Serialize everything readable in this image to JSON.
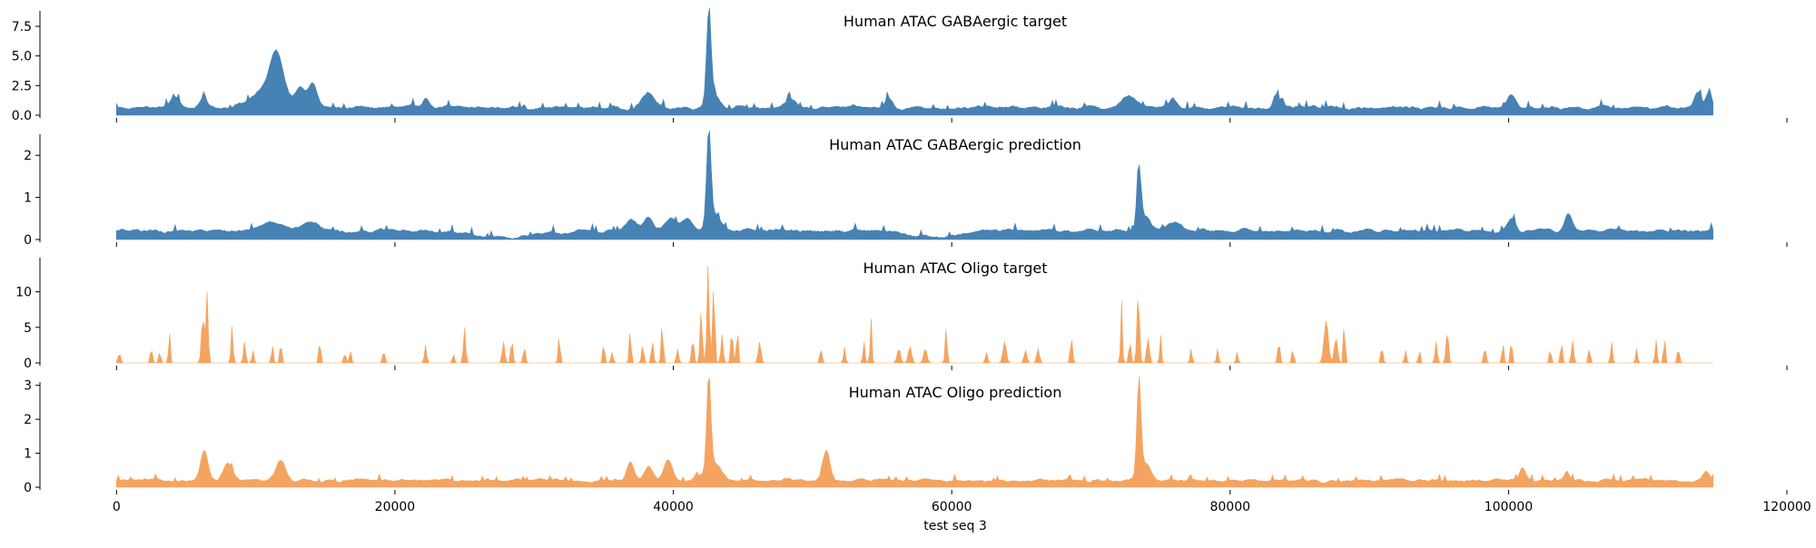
{
  "chart_data": [
    {
      "type": "area",
      "title": "Human ATAC GABAergic target",
      "color": "#4682B4",
      "yticks": [
        0.0,
        2.5,
        5.0,
        7.5
      ],
      "ytick_labels": [
        "0.0",
        "2.5",
        "5.0",
        "7.5"
      ],
      "ylim": [
        0,
        8.8
      ],
      "xlim": [
        -5500,
        120000
      ],
      "xticks": [
        0,
        20000,
        40000,
        60000,
        80000,
        100000,
        120000
      ],
      "x_extent": [
        0,
        114688
      ],
      "baseline": 0.55,
      "noise": 0.32,
      "peaks": [
        [
          11500,
          3.4,
          450
        ],
        [
          11000,
          1.6,
          1200
        ],
        [
          13200,
          1.4,
          350
        ],
        [
          14100,
          2.0,
          300
        ],
        [
          4200,
          1.0,
          300
        ],
        [
          6300,
          0.8,
          250
        ],
        [
          38200,
          1.3,
          400
        ],
        [
          42550,
          7.7,
          160
        ],
        [
          42900,
          1.2,
          400
        ],
        [
          72800,
          1.0,
          500
        ],
        [
          75900,
          0.9,
          250
        ],
        [
          83300,
          1.1,
          200
        ],
        [
          100200,
          1.0,
          300
        ],
        [
          113600,
          1.4,
          250
        ],
        [
          114400,
          1.4,
          200
        ],
        [
          22200,
          0.9,
          250
        ],
        [
          48500,
          0.7,
          300
        ],
        [
          55500,
          0.8,
          250
        ]
      ]
    },
    {
      "type": "area",
      "title": "Human ATAC GABAergic prediction",
      "color": "#4682B4",
      "yticks": [
        0,
        1,
        2
      ],
      "ytick_labels": [
        "0",
        "1",
        "2"
      ],
      "ylim": [
        0,
        2.5
      ],
      "xlim": [
        -5500,
        120000
      ],
      "xticks": [
        0,
        20000,
        40000,
        60000,
        80000,
        100000,
        120000
      ],
      "x_extent": [
        0,
        114688
      ],
      "baseline": 0.18,
      "noise": 0.09,
      "peaks": [
        [
          11300,
          0.22,
          900
        ],
        [
          14000,
          0.2,
          600
        ],
        [
          37000,
          0.25,
          400
        ],
        [
          38200,
          0.3,
          300
        ],
        [
          39800,
          0.3,
          400
        ],
        [
          41000,
          0.3,
          400
        ],
        [
          42550,
          2.2,
          150
        ],
        [
          42900,
          0.4,
          500
        ],
        [
          73450,
          1.45,
          150
        ],
        [
          73900,
          0.35,
          400
        ],
        [
          76000,
          0.2,
          500
        ],
        [
          100200,
          0.3,
          300
        ],
        [
          104300,
          0.45,
          250
        ],
        [
          28000,
          -0.15,
          2500
        ],
        [
          58500,
          -0.15,
          1500
        ]
      ]
    },
    {
      "type": "area",
      "title": "Human ATAC Oligo target",
      "color": "#F4A460",
      "yticks": [
        0,
        5,
        10
      ],
      "ytick_labels": [
        "0",
        "5",
        "10"
      ],
      "ylim": [
        0,
        14.8
      ],
      "xlim": [
        -5500,
        120000
      ],
      "xticks": [
        0,
        20000,
        40000,
        60000,
        80000,
        100000,
        120000
      ],
      "x_extent": [
        0,
        114688
      ],
      "baseline": 0,
      "noise": 0,
      "peaks": [
        [
          200,
          1.3,
          100
        ],
        [
          2500,
          2.0,
          80
        ],
        [
          3100,
          1.5,
          80
        ],
        [
          3800,
          4.5,
          60
        ],
        [
          6200,
          6.5,
          100
        ],
        [
          6500,
          10.0,
          80
        ],
        [
          8300,
          5.2,
          70
        ],
        [
          9200,
          3.0,
          80
        ],
        [
          9800,
          1.8,
          70
        ],
        [
          11200,
          2.5,
          70
        ],
        [
          11800,
          3.0,
          70
        ],
        [
          14600,
          3.2,
          70
        ],
        [
          16400,
          1.5,
          70
        ],
        [
          16800,
          1.8,
          70
        ],
        [
          19200,
          1.7,
          80
        ],
        [
          22200,
          2.5,
          80
        ],
        [
          24200,
          1.3,
          70
        ],
        [
          25000,
          5.0,
          80
        ],
        [
          27800,
          3.0,
          90
        ],
        [
          28400,
          3.2,
          80
        ],
        [
          29300,
          2.2,
          80
        ],
        [
          31800,
          3.8,
          70
        ],
        [
          35000,
          2.8,
          70
        ],
        [
          35600,
          1.5,
          80
        ],
        [
          36900,
          4.5,
          70
        ],
        [
          37800,
          2.5,
          80
        ],
        [
          38500,
          3.0,
          80
        ],
        [
          39200,
          5.5,
          70
        ],
        [
          40300,
          2.0,
          80
        ],
        [
          41400,
          3.5,
          80
        ],
        [
          42000,
          7.5,
          80
        ],
        [
          42500,
          14.0,
          80
        ],
        [
          42900,
          11.0,
          80
        ],
        [
          43500,
          4.0,
          80
        ],
        [
          44200,
          4.5,
          80
        ],
        [
          44600,
          5.5,
          60
        ],
        [
          46200,
          3.0,
          100
        ],
        [
          50600,
          2.0,
          80
        ],
        [
          52300,
          2.2,
          70
        ],
        [
          53700,
          3.0,
          70
        ],
        [
          54200,
          6.5,
          60
        ],
        [
          56200,
          2.0,
          120
        ],
        [
          57000,
          2.3,
          120
        ],
        [
          58100,
          2.0,
          120
        ],
        [
          59600,
          5.0,
          70
        ],
        [
          62500,
          1.5,
          80
        ],
        [
          63800,
          3.0,
          120
        ],
        [
          65300,
          1.8,
          100
        ],
        [
          66200,
          2.0,
          100
        ],
        [
          68600,
          3.5,
          80
        ],
        [
          72200,
          8.8,
          60
        ],
        [
          72800,
          3.0,
          80
        ],
        [
          73400,
          10.0,
          90
        ],
        [
          74100,
          3.5,
          100
        ],
        [
          75000,
          4.0,
          60
        ],
        [
          77200,
          2.0,
          70
        ],
        [
          79100,
          2.0,
          70
        ],
        [
          80500,
          1.5,
          70
        ],
        [
          83500,
          3.0,
          80
        ],
        [
          84500,
          2.0,
          70
        ],
        [
          86900,
          6.0,
          150
        ],
        [
          87600,
          3.5,
          120
        ],
        [
          88200,
          6.5,
          60
        ],
        [
          90900,
          2.2,
          80
        ],
        [
          92600,
          1.8,
          70
        ],
        [
          93600,
          1.8,
          70
        ],
        [
          94800,
          3.0,
          80
        ],
        [
          95600,
          4.5,
          90
        ],
        [
          98300,
          2.2,
          80
        ],
        [
          99600,
          2.8,
          70
        ],
        [
          100200,
          3.2,
          70
        ],
        [
          103000,
          2.0,
          70
        ],
        [
          103800,
          3.0,
          70
        ],
        [
          104600,
          3.2,
          80
        ],
        [
          105800,
          2.2,
          70
        ],
        [
          107400,
          3.0,
          70
        ],
        [
          109200,
          2.0,
          70
        ],
        [
          110600,
          3.2,
          70
        ],
        [
          111200,
          4.0,
          60
        ],
        [
          112200,
          2.0,
          80
        ]
      ]
    },
    {
      "type": "area",
      "title": "Human ATAC Oligo prediction",
      "color": "#F4A460",
      "yticks": [
        0,
        1,
        2,
        3
      ],
      "ytick_labels": [
        "0",
        "1",
        "2",
        "3"
      ],
      "ylim": [
        0,
        3.1
      ],
      "xlim": [
        -5500,
        120000
      ],
      "xticks": [
        0,
        20000,
        40000,
        60000,
        80000,
        100000,
        120000
      ],
      "x_extent": [
        0,
        114688
      ],
      "baseline": 0.17,
      "noise": 0.1,
      "peaks": [
        [
          6300,
          0.9,
          250
        ],
        [
          8000,
          0.5,
          300
        ],
        [
          11800,
          0.6,
          350
        ],
        [
          36900,
          0.6,
          250
        ],
        [
          38200,
          0.4,
          300
        ],
        [
          39600,
          0.6,
          300
        ],
        [
          42550,
          2.8,
          140
        ],
        [
          42900,
          0.5,
          600
        ],
        [
          51000,
          0.9,
          250
        ],
        [
          73450,
          2.85,
          140
        ],
        [
          73900,
          0.5,
          400
        ],
        [
          101000,
          0.4,
          200
        ],
        [
          104200,
          0.3,
          200
        ],
        [
          114200,
          0.25,
          200
        ]
      ]
    }
  ],
  "xtick_labels": [
    "0",
    "20000",
    "40000",
    "60000",
    "80000",
    "100000",
    "120000"
  ],
  "xlabel": "test seq 3"
}
